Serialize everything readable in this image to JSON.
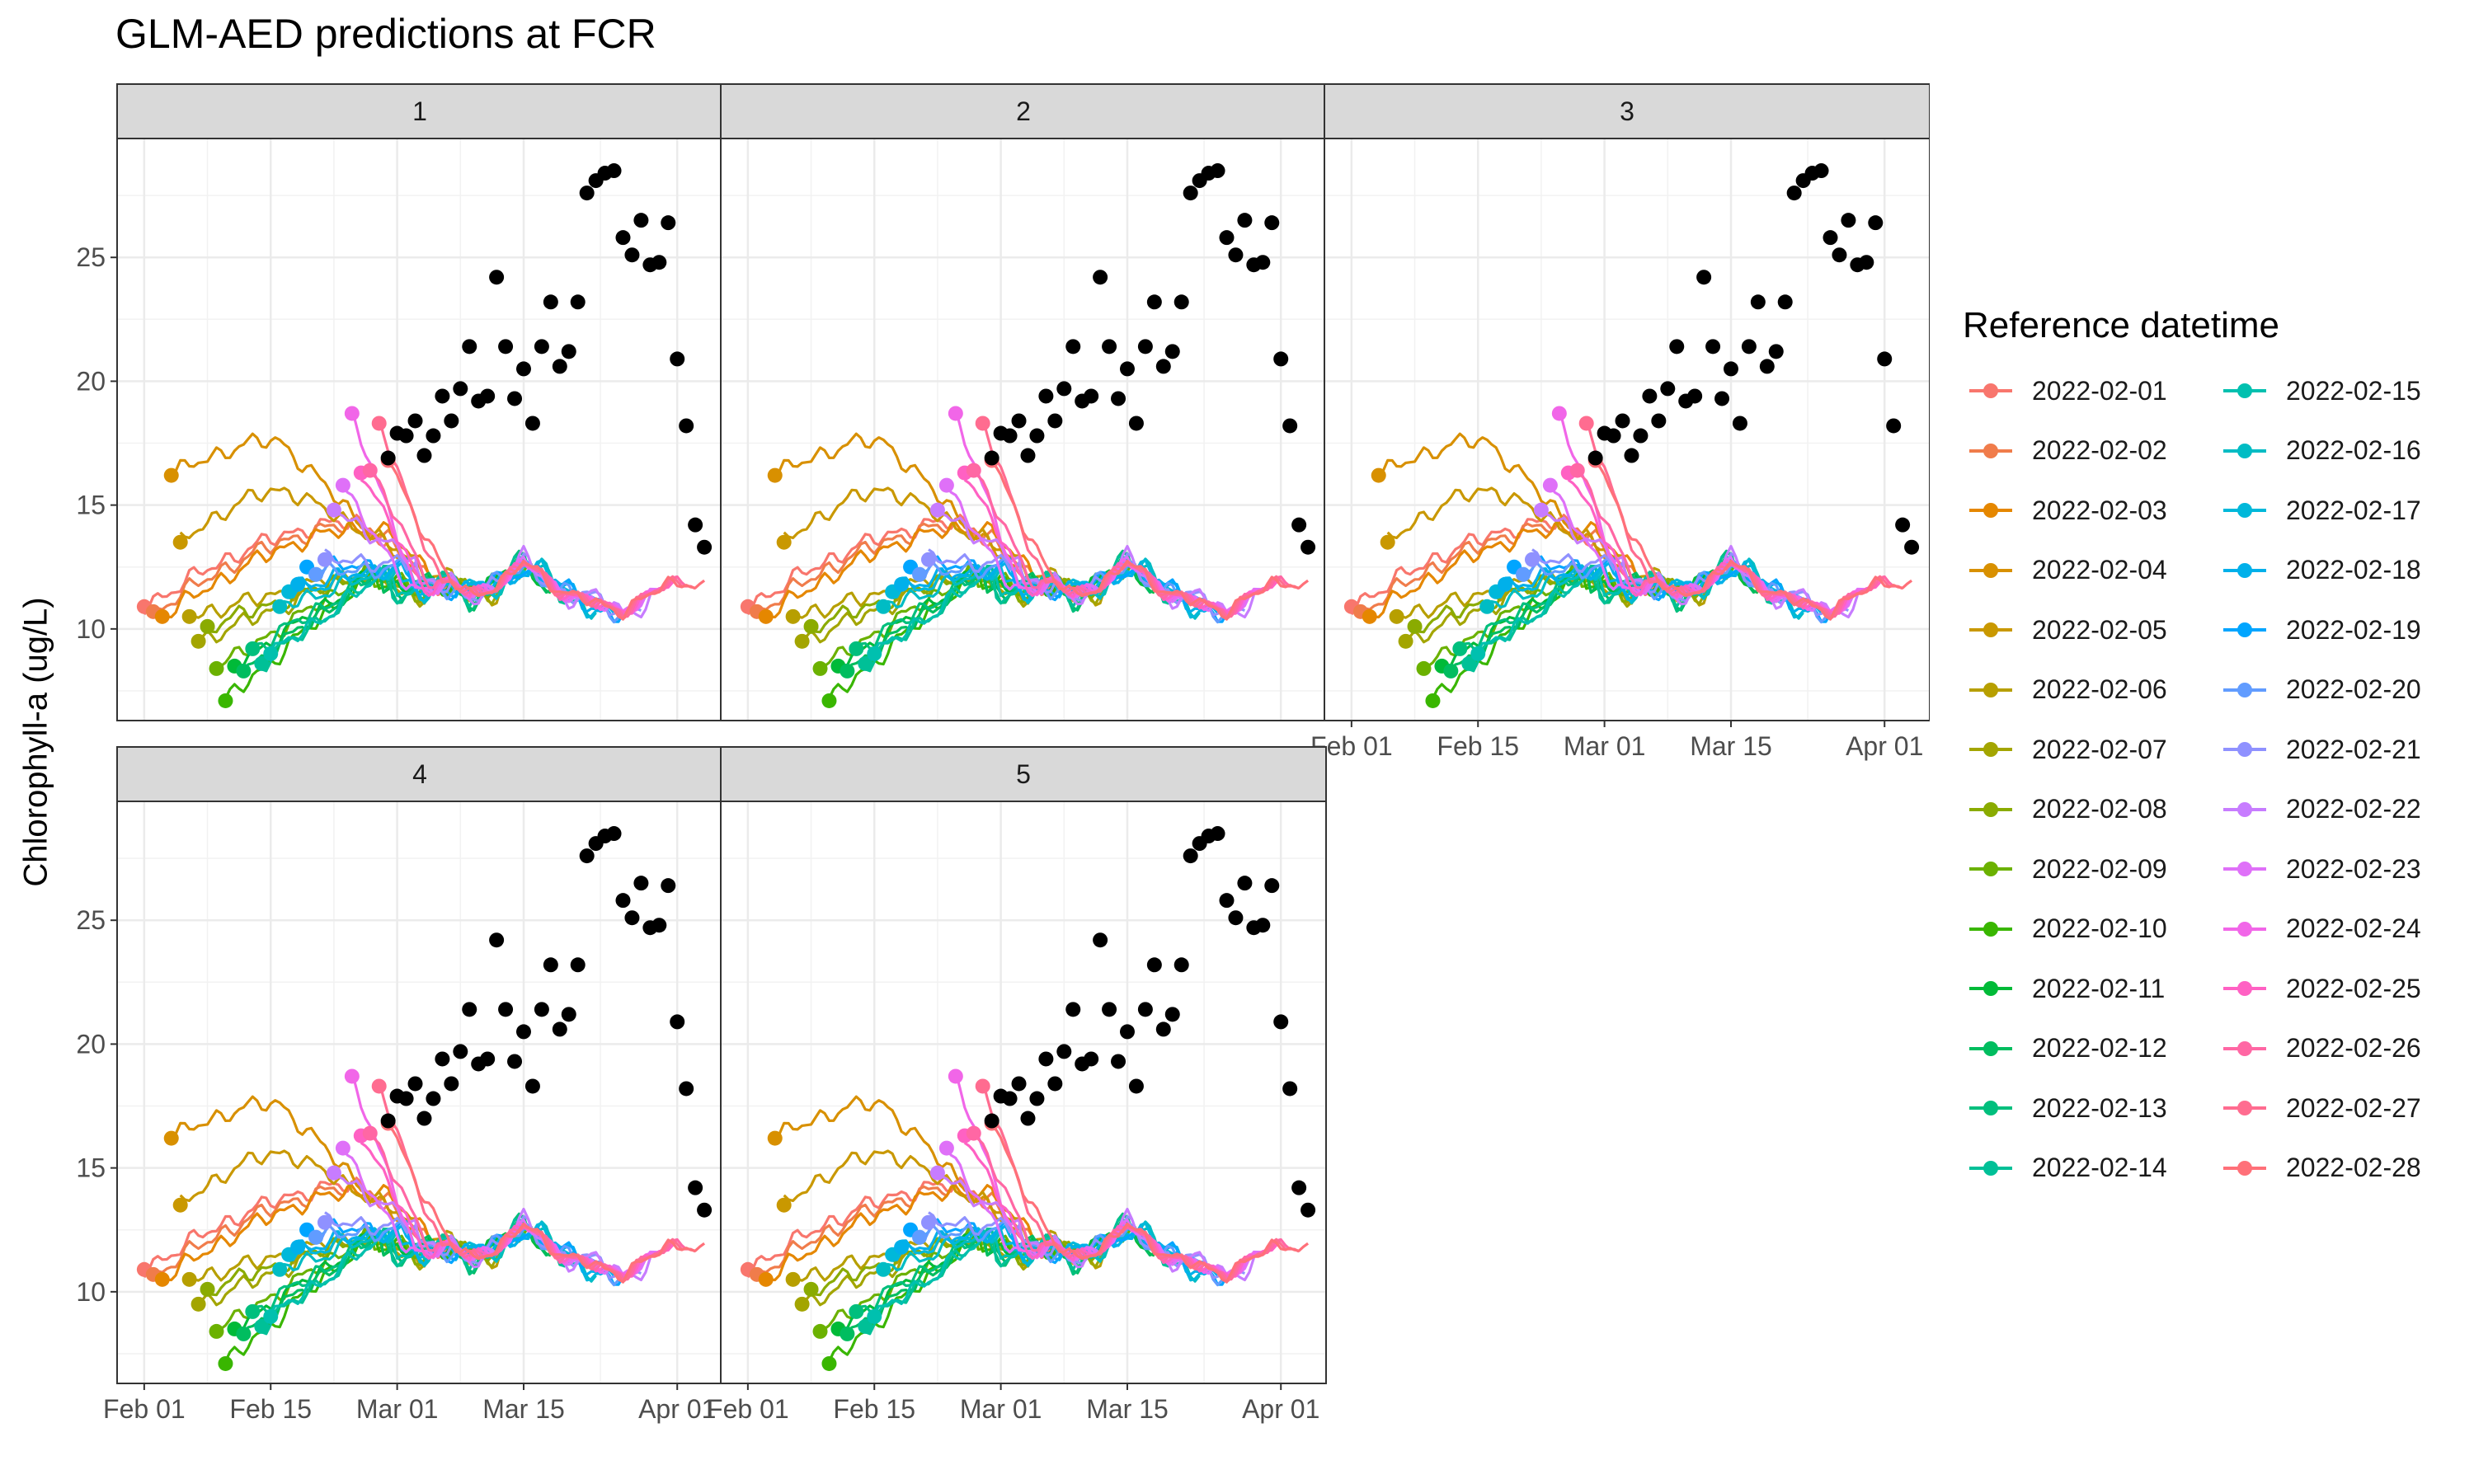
{
  "chart_data": {
    "type": "line",
    "title": "GLM-AED predictions at FCR",
    "ylabel": "Chlorophyll-a (ug/L)",
    "xlabel": "",
    "panels": [
      "1",
      "2",
      "3",
      "4",
      "5"
    ],
    "x_ticks": [
      "Feb 01",
      "Feb 15",
      "Mar 01",
      "Mar 15",
      "Apr 01"
    ],
    "y_ticks": [
      10,
      15,
      20,
      25
    ],
    "xlim": [
      "2022-01-29",
      "2022-04-06"
    ],
    "ylim": [
      6.3,
      29.8
    ],
    "grid": true,
    "legend_position": "right",
    "legend_title": "Reference datetime",
    "series_names": [
      "2022-02-01",
      "2022-02-02",
      "2022-02-03",
      "2022-02-04",
      "2022-02-05",
      "2022-02-06",
      "2022-02-07",
      "2022-02-08",
      "2022-02-09",
      "2022-02-10",
      "2022-02-11",
      "2022-02-12",
      "2022-02-13",
      "2022-02-14",
      "2022-02-15",
      "2022-02-16",
      "2022-02-17",
      "2022-02-18",
      "2022-02-19",
      "2022-02-20",
      "2022-02-21",
      "2022-02-22",
      "2022-02-23",
      "2022-02-24",
      "2022-02-25",
      "2022-02-26",
      "2022-02-27",
      "2022-02-28"
    ],
    "series_colors": [
      "#F8766D",
      "#F07C4B",
      "#E58700",
      "#D89000",
      "#C99800",
      "#B79F00",
      "#A3A500",
      "#8AAB00",
      "#6BB100",
      "#39B600",
      "#00BA38",
      "#00BD5F",
      "#00BF7D",
      "#00C097",
      "#00C0AF",
      "#00BCC4",
      "#00B8DA",
      "#00B0EA",
      "#00A5FF",
      "#619CFF",
      "#8F91FF",
      "#C77CFF",
      "#DF70F8",
      "#F166E8",
      "#FF61C3",
      "#FF67A4",
      "#FF6C90",
      "#FF7079"
    ],
    "forecast_start_values": [
      10.9,
      10.7,
      10.5,
      16.2,
      13.5,
      10.5,
      9.5,
      10.1,
      8.4,
      7.1,
      8.5,
      8.3,
      9.2,
      8.6,
      9.0,
      10.9,
      11.5,
      11.8,
      12.5,
      12.2,
      12.8,
      14.8,
      15.8,
      18.7,
      16.3,
      16.4,
      18.3,
      16.8
    ],
    "observations": {
      "x": [
        "2022-02-28",
        "2022-03-01",
        "2022-03-02",
        "2022-03-03",
        "2022-03-04",
        "2022-03-05",
        "2022-03-06",
        "2022-03-07",
        "2022-03-08",
        "2022-03-09",
        "2022-03-10",
        "2022-03-11",
        "2022-03-12",
        "2022-03-13",
        "2022-03-14",
        "2022-03-15",
        "2022-03-16",
        "2022-03-17",
        "2022-03-18",
        "2022-03-19",
        "2022-03-20",
        "2022-03-21",
        "2022-03-22",
        "2022-03-23",
        "2022-03-24",
        "2022-03-25",
        "2022-03-26",
        "2022-03-27",
        "2022-03-28",
        "2022-03-29",
        "2022-03-30",
        "2022-03-31",
        "2022-04-01",
        "2022-04-02",
        "2022-04-03",
        "2022-04-04"
      ],
      "y": [
        16.9,
        17.9,
        17.8,
        18.4,
        17.0,
        17.8,
        19.4,
        18.4,
        19.7,
        21.4,
        19.2,
        19.4,
        24.2,
        21.4,
        19.3,
        20.5,
        18.3,
        21.4,
        23.2,
        20.6,
        21.2,
        23.2,
        27.6,
        28.1,
        28.4,
        28.5,
        25.8,
        25.1,
        26.5,
        24.7,
        24.8,
        26.4,
        20.9,
        18.2,
        14.2,
        13.3
      ]
    }
  }
}
